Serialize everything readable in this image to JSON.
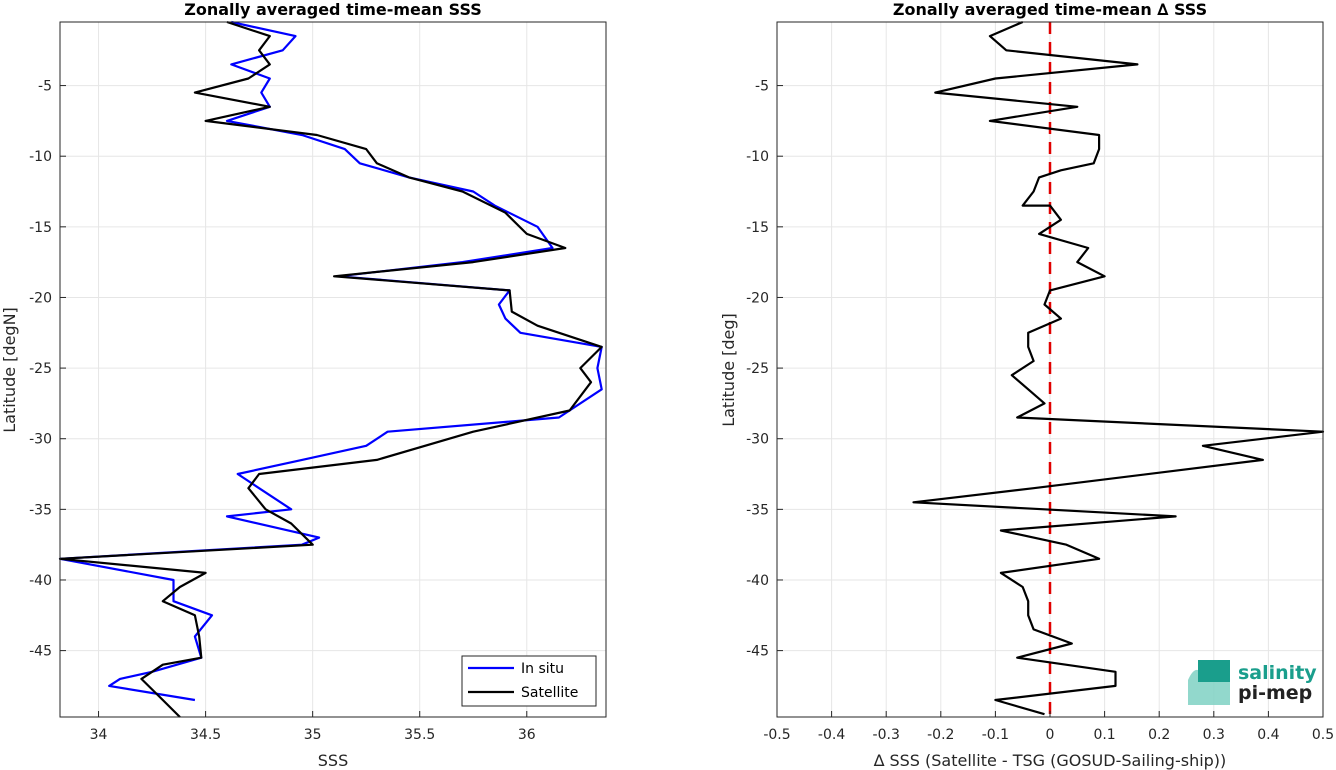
{
  "chart_data": [
    {
      "type": "line",
      "title": "Zonally averaged time-mean SSS",
      "xlabel": "SSS",
      "ylabel": "Latitude [degN]",
      "xlim": [
        33.82,
        36.37
      ],
      "ylim": [
        -49.7,
        -0.5
      ],
      "xticks": [
        34,
        34.5,
        35,
        35.5,
        36
      ],
      "xtick_labels": [
        "34",
        "34.5",
        "35",
        "35.5",
        "36"
      ],
      "yticks": [
        -5,
        -10,
        -15,
        -20,
        -25,
        -30,
        -35,
        -40,
        -45
      ],
      "ytick_labels": [
        "-5",
        "-10",
        "-15",
        "-20",
        "-25",
        "-30",
        "-35",
        "-40",
        "-45"
      ],
      "grid": true,
      "legend_position": "bottom-right",
      "series": [
        {
          "name": "In situ",
          "color": "#0000ff",
          "points": [
            [
              34.62,
              -0.5
            ],
            [
              34.92,
              -1.5
            ],
            [
              34.86,
              -2.5
            ],
            [
              34.62,
              -3.5
            ],
            [
              34.8,
              -4.5
            ],
            [
              34.76,
              -5.5
            ],
            [
              34.8,
              -6.5
            ],
            [
              34.6,
              -7.5
            ],
            [
              34.95,
              -8.5
            ],
            [
              35.15,
              -9.5
            ],
            [
              35.22,
              -10.5
            ],
            [
              35.45,
              -11.5
            ],
            [
              35.75,
              -12.5
            ],
            [
              35.85,
              -13.5
            ],
            [
              36.05,
              -15
            ],
            [
              36.12,
              -16.5
            ],
            [
              35.7,
              -17.5
            ],
            [
              35.12,
              -18.5
            ],
            [
              35.92,
              -19.5
            ],
            [
              35.87,
              -20.5
            ],
            [
              35.9,
              -21.5
            ],
            [
              35.97,
              -22.5
            ],
            [
              36.35,
              -23.5
            ],
            [
              36.33,
              -25
            ],
            [
              36.35,
              -26.5
            ],
            [
              36.15,
              -28.5
            ],
            [
              35.35,
              -29.5
            ],
            [
              35.25,
              -30.5
            ],
            [
              34.95,
              -31.5
            ],
            [
              34.65,
              -32.5
            ],
            [
              34.75,
              -33.5
            ],
            [
              34.9,
              -35
            ],
            [
              34.6,
              -35.5
            ],
            [
              35.03,
              -37
            ],
            [
              34.95,
              -37.5
            ],
            [
              33.82,
              -38.5
            ],
            [
              34.35,
              -40
            ],
            [
              34.35,
              -41.5
            ],
            [
              34.53,
              -42.5
            ],
            [
              34.45,
              -44
            ],
            [
              34.48,
              -45.5
            ],
            [
              34.25,
              -46.5
            ],
            [
              34.1,
              -47
            ],
            [
              34.05,
              -47.5
            ],
            [
              34.45,
              -48.5
            ]
          ]
        },
        {
          "name": "Satellite",
          "color": "#000000",
          "points": [
            [
              34.6,
              -0.5
            ],
            [
              34.8,
              -1.5
            ],
            [
              34.75,
              -2.5
            ],
            [
              34.8,
              -3.5
            ],
            [
              34.7,
              -4.5
            ],
            [
              34.45,
              -5.5
            ],
            [
              34.8,
              -6.5
            ],
            [
              34.5,
              -7.5
            ],
            [
              35.02,
              -8.5
            ],
            [
              35.25,
              -9.5
            ],
            [
              35.3,
              -10.5
            ],
            [
              35.45,
              -11.5
            ],
            [
              35.7,
              -12.5
            ],
            [
              35.9,
              -14
            ],
            [
              36.0,
              -15.5
            ],
            [
              36.18,
              -16.5
            ],
            [
              35.75,
              -17.5
            ],
            [
              35.1,
              -18.5
            ],
            [
              35.92,
              -19.5
            ],
            [
              35.93,
              -21
            ],
            [
              36.05,
              -22
            ],
            [
              36.35,
              -23.5
            ],
            [
              36.25,
              -25
            ],
            [
              36.3,
              -26
            ],
            [
              36.2,
              -28
            ],
            [
              35.75,
              -29.5
            ],
            [
              35.3,
              -31.5
            ],
            [
              34.75,
              -32.5
            ],
            [
              34.7,
              -33.5
            ],
            [
              34.78,
              -35
            ],
            [
              34.9,
              -36
            ],
            [
              35.0,
              -37.5
            ],
            [
              33.82,
              -38.5
            ],
            [
              34.5,
              -39.5
            ],
            [
              34.38,
              -40.5
            ],
            [
              34.3,
              -41.5
            ],
            [
              34.45,
              -42.5
            ],
            [
              34.47,
              -44
            ],
            [
              34.48,
              -45.5
            ],
            [
              34.3,
              -46
            ],
            [
              34.2,
              -47
            ],
            [
              34.3,
              -48.5
            ],
            [
              34.38,
              -49.7
            ]
          ]
        }
      ]
    },
    {
      "type": "line",
      "title": "Zonally averaged time-mean ∆ SSS",
      "xlabel": "∆ SSS (Satellite - TSG (GOSUD-Sailing-ship))",
      "ylabel": "Latitude [deg]",
      "xlim": [
        -0.5,
        0.5
      ],
      "ylim": [
        -49.7,
        -0.5
      ],
      "xticks": [
        -0.5,
        -0.4,
        -0.3,
        -0.2,
        -0.1,
        0,
        0.1,
        0.2,
        0.3,
        0.4,
        0.5
      ],
      "xtick_labels": [
        "-0.5",
        "-0.4",
        "-0.3",
        "-0.2",
        "-0.1",
        "0",
        "0.1",
        "0.2",
        "0.3",
        "0.4",
        "0.5"
      ],
      "yticks": [
        -5,
        -10,
        -15,
        -20,
        -25,
        -30,
        -35,
        -40,
        -45
      ],
      "ytick_labels": [
        "-5",
        "-10",
        "-15",
        "-20",
        "-25",
        "-30",
        "-35",
        "-40",
        "-45"
      ],
      "grid": true,
      "reference_line": {
        "x": 0,
        "color": "#e00000",
        "style": "dashed"
      },
      "series": [
        {
          "color": "#000000",
          "points": [
            [
              -0.05,
              -0.5
            ],
            [
              -0.11,
              -1.5
            ],
            [
              -0.08,
              -2.5
            ],
            [
              0.16,
              -3.5
            ],
            [
              -0.1,
              -4.5
            ],
            [
              -0.21,
              -5.5
            ],
            [
              0.05,
              -6.5
            ],
            [
              -0.11,
              -7.5
            ],
            [
              0.09,
              -8.5
            ],
            [
              0.09,
              -9.5
            ],
            [
              0.08,
              -10.5
            ],
            [
              0.02,
              -11
            ],
            [
              -0.02,
              -11.5
            ],
            [
              -0.03,
              -12.5
            ],
            [
              -0.05,
              -13.5
            ],
            [
              0.0,
              -13.5
            ],
            [
              0.02,
              -14.5
            ],
            [
              -0.02,
              -15.5
            ],
            [
              0.07,
              -16.5
            ],
            [
              0.05,
              -17.5
            ],
            [
              0.1,
              -18.5
            ],
            [
              0.0,
              -19.5
            ],
            [
              -0.01,
              -20.5
            ],
            [
              0.02,
              -21.5
            ],
            [
              -0.04,
              -22.5
            ],
            [
              -0.04,
              -23.5
            ],
            [
              -0.03,
              -24.5
            ],
            [
              -0.07,
              -25.5
            ],
            [
              -0.04,
              -26.5
            ],
            [
              -0.01,
              -27.5
            ],
            [
              -0.06,
              -28.5
            ],
            [
              0.5,
              -29.5
            ],
            [
              0.28,
              -30.5
            ],
            [
              0.39,
              -31.5
            ],
            [
              -0.03,
              -33.5
            ],
            [
              -0.25,
              -34.5
            ],
            [
              0.23,
              -35.5
            ],
            [
              -0.09,
              -36.5
            ],
            [
              0.03,
              -37.5
            ],
            [
              0.09,
              -38.5
            ],
            [
              -0.09,
              -39.5
            ],
            [
              -0.05,
              -40.5
            ],
            [
              -0.04,
              -41.5
            ],
            [
              -0.04,
              -42.5
            ],
            [
              -0.03,
              -43.5
            ],
            [
              0.04,
              -44.5
            ],
            [
              -0.06,
              -45.5
            ],
            [
              0.12,
              -46.5
            ],
            [
              0.12,
              -47.5
            ],
            [
              -0.1,
              -48.5
            ],
            [
              -0.01,
              -49.5
            ]
          ]
        }
      ]
    }
  ],
  "legend": {
    "in_situ": "In situ",
    "satellite": "Satellite"
  },
  "logo": {
    "line1": "salinity",
    "line2": "pi-mep"
  }
}
